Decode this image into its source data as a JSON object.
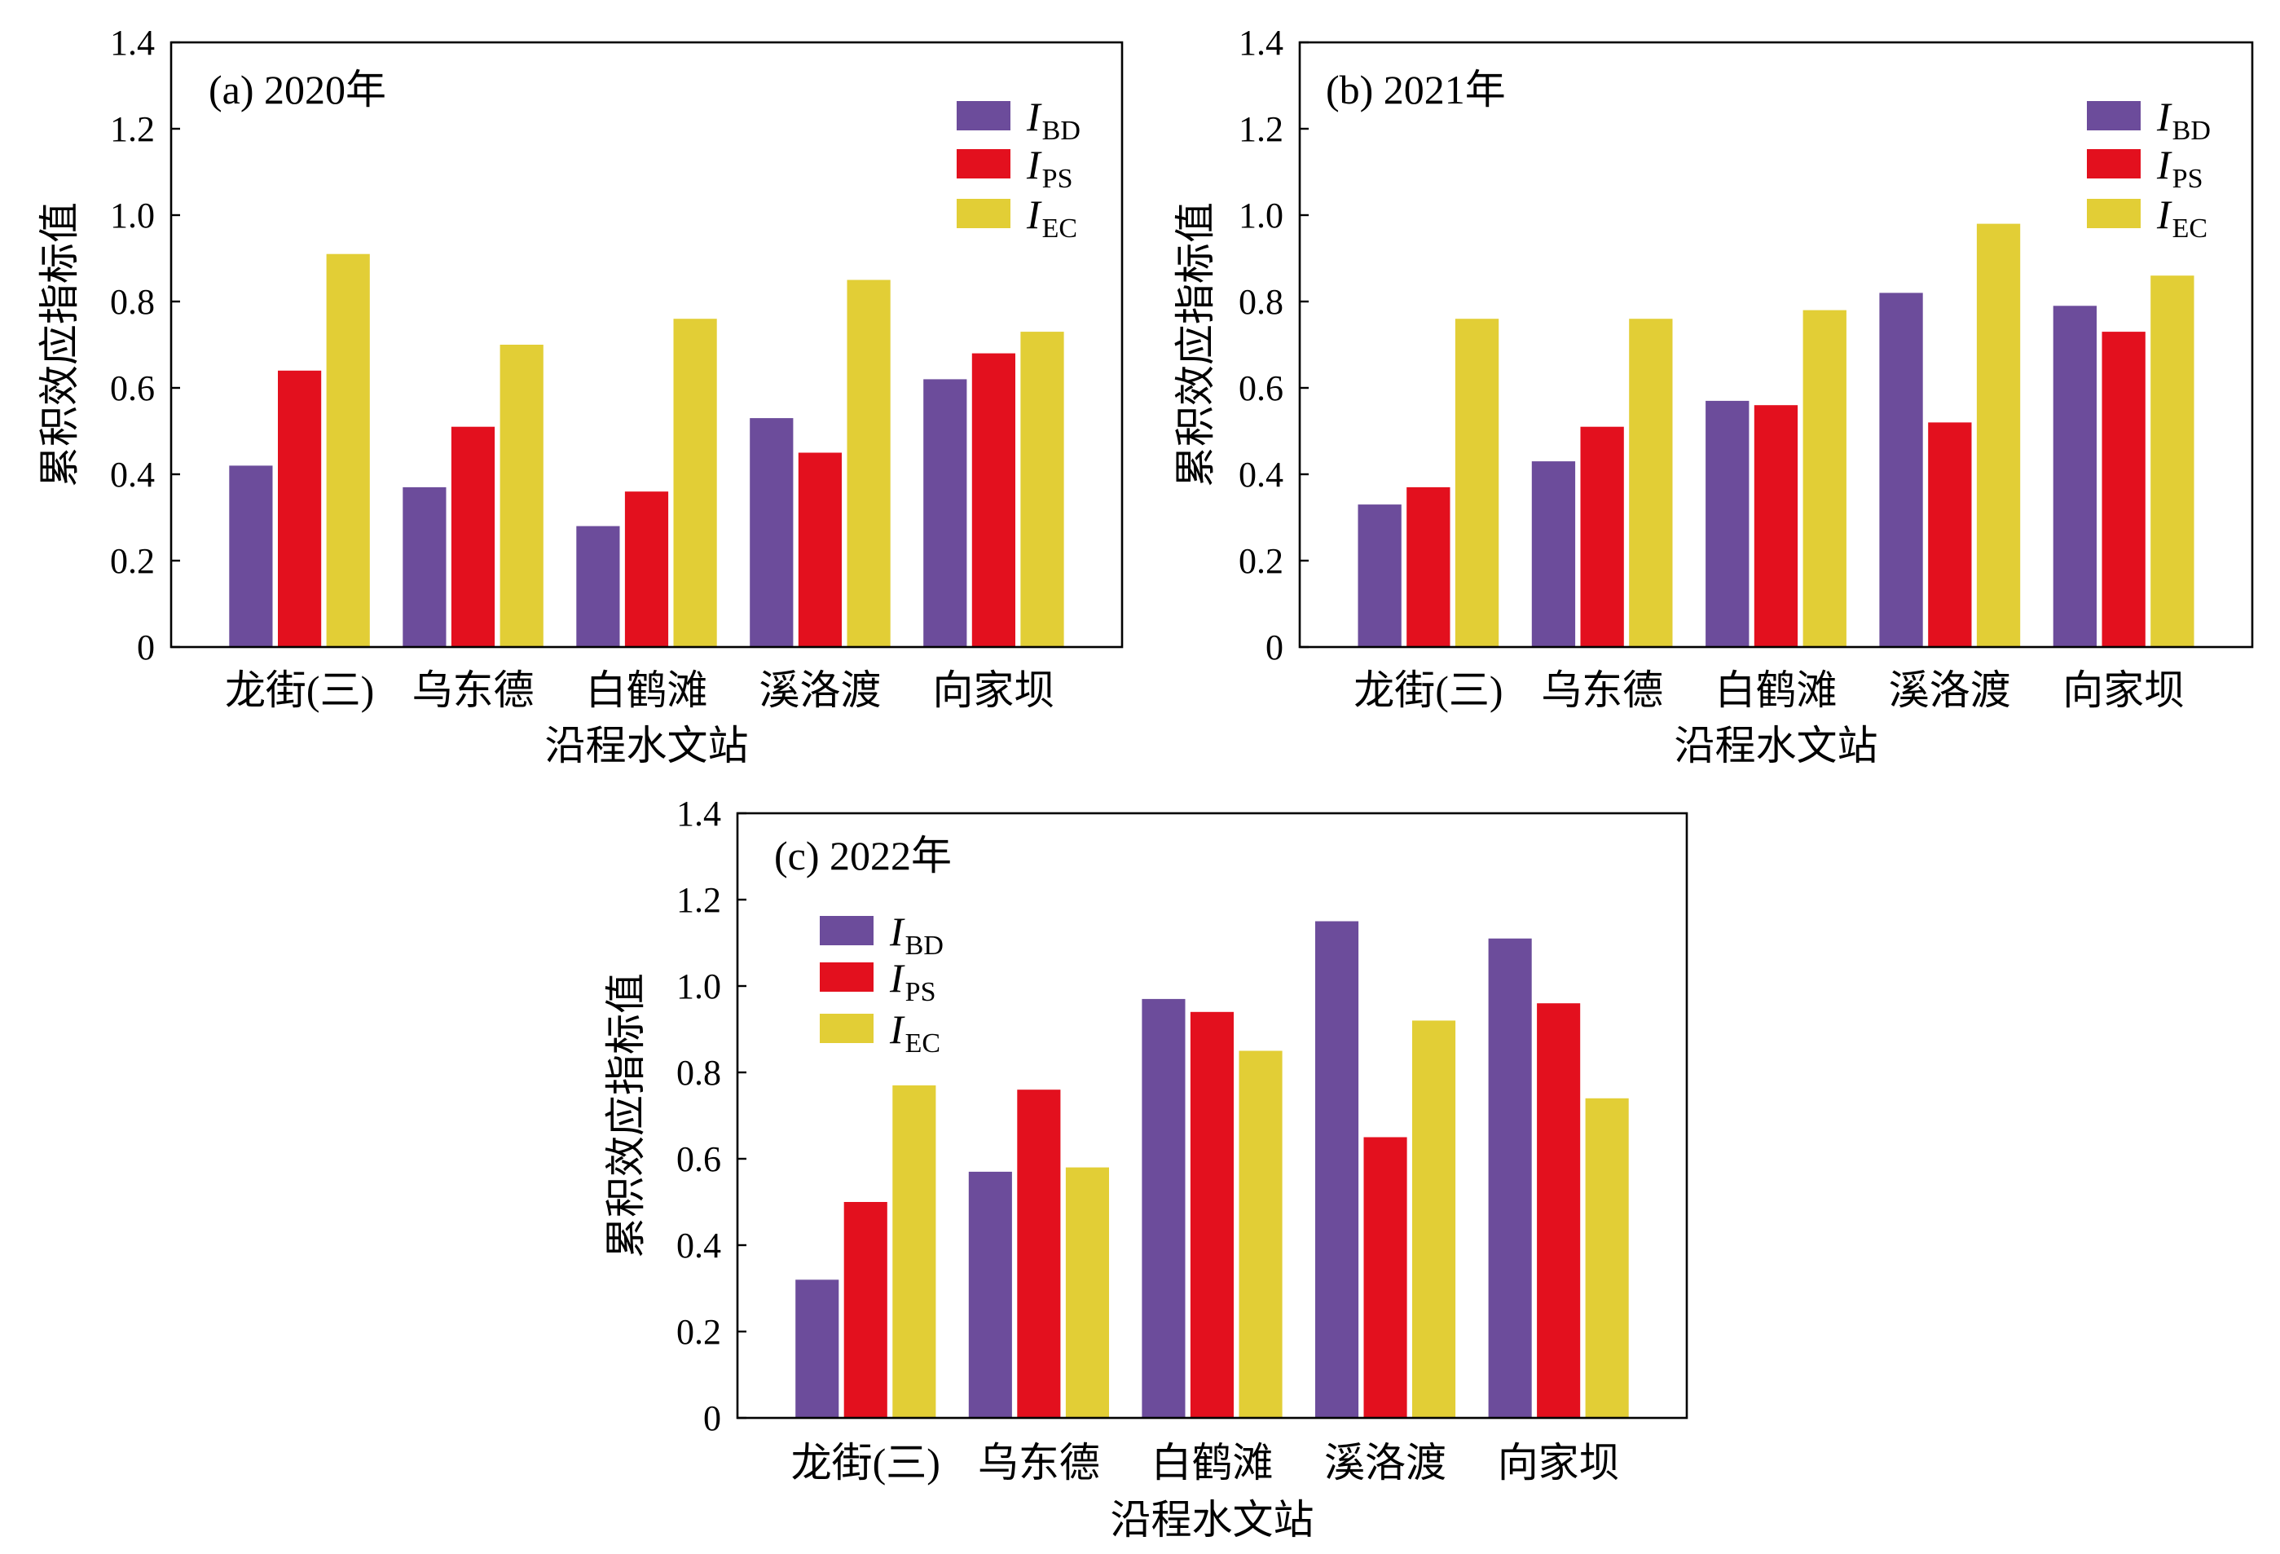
{
  "chart_data": [
    {
      "type": "bar",
      "title": "(a) 2020年",
      "xlabel": "沿程水文站",
      "ylabel": "累积效应指标值",
      "categories": [
        "龙街(三)",
        "乌东德",
        "白鹤滩",
        "溪洛渡",
        "向家坝"
      ],
      "ylim": [
        0,
        1.4
      ],
      "yticks": [
        "0",
        "0.2",
        "0.4",
        "0.6",
        "0.8",
        "1.0",
        "1.2",
        "1.4"
      ],
      "grid": false,
      "legend_position": "top-right",
      "series": [
        {
          "symbol": "I",
          "subscript": "BD",
          "color": "#6C4C9B",
          "values": [
            0.42,
            0.37,
            0.28,
            0.53,
            0.62
          ]
        },
        {
          "symbol": "I",
          "subscript": "PS",
          "color": "#E3101E",
          "values": [
            0.64,
            0.51,
            0.36,
            0.45,
            0.68
          ]
        },
        {
          "symbol": "I",
          "subscript": "EC",
          "color": "#E2CE36",
          "values": [
            0.91,
            0.7,
            0.76,
            0.85,
            0.73
          ]
        }
      ]
    },
    {
      "type": "bar",
      "title": "(b) 2021年",
      "xlabel": "沿程水文站",
      "ylabel": "累积效应指标值",
      "categories": [
        "龙街(三)",
        "乌东德",
        "白鹤滩",
        "溪洛渡",
        "向家坝"
      ],
      "ylim": [
        0,
        1.4
      ],
      "yticks": [
        "0",
        "0.2",
        "0.4",
        "0.6",
        "0.8",
        "1.0",
        "1.2",
        "1.4"
      ],
      "grid": false,
      "legend_position": "top-right",
      "series": [
        {
          "symbol": "I",
          "subscript": "BD",
          "color": "#6C4C9B",
          "values": [
            0.33,
            0.43,
            0.57,
            0.82,
            0.79
          ]
        },
        {
          "symbol": "I",
          "subscript": "PS",
          "color": "#E3101E",
          "values": [
            0.37,
            0.51,
            0.56,
            0.52,
            0.73
          ]
        },
        {
          "symbol": "I",
          "subscript": "EC",
          "color": "#E2CE36",
          "values": [
            0.76,
            0.76,
            0.78,
            0.98,
            0.86
          ]
        }
      ]
    },
    {
      "type": "bar",
      "title": "(c) 2022年",
      "xlabel": "沿程水文站",
      "ylabel": "累积效应指标值",
      "categories": [
        "龙街(三)",
        "乌东德",
        "白鹤滩",
        "溪洛渡",
        "向家坝"
      ],
      "ylim": [
        0,
        1.4
      ],
      "yticks": [
        "0",
        "0.2",
        "0.4",
        "0.6",
        "0.8",
        "1.0",
        "1.2",
        "1.4"
      ],
      "grid": false,
      "legend_position": "top-left",
      "series": [
        {
          "symbol": "I",
          "subscript": "BD",
          "color": "#6C4C9B",
          "values": [
            0.32,
            0.57,
            0.97,
            1.15,
            1.11
          ]
        },
        {
          "symbol": "I",
          "subscript": "PS",
          "color": "#E3101E",
          "values": [
            0.5,
            0.76,
            0.94,
            0.65,
            0.96
          ]
        },
        {
          "symbol": "I",
          "subscript": "EC",
          "color": "#E2CE36",
          "values": [
            0.77,
            0.58,
            0.85,
            0.92,
            0.74
          ]
        }
      ]
    }
  ]
}
